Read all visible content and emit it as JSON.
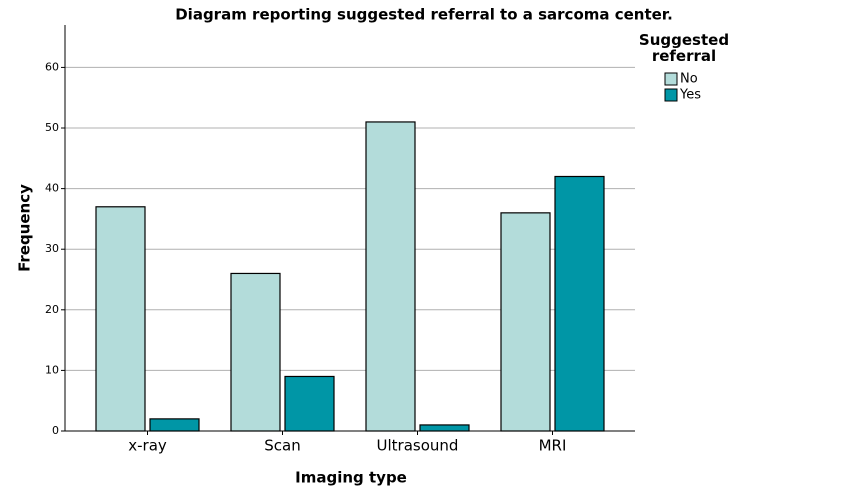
{
  "chart_data": {
    "type": "bar",
    "title": "Diagram reporting suggested referral to a sarcoma center.",
    "x_label": "Imaging type",
    "y_label": "Frequency",
    "categories": [
      "x-ray",
      "Scan",
      "Ultrasound",
      "MRI"
    ],
    "legend_title": "Suggested referral",
    "series": [
      {
        "name": "No",
        "color": "#b3dcda",
        "values": [
          37,
          26,
          51,
          36
        ]
      },
      {
        "name": "Yes",
        "color": "#0096a6",
        "values": [
          2,
          9,
          1,
          42
        ]
      }
    ],
    "ylim": [
      0,
      67
    ],
    "yticks": [
      0,
      10,
      20,
      30,
      40,
      50,
      60
    ],
    "grid": true,
    "legend": "right"
  }
}
